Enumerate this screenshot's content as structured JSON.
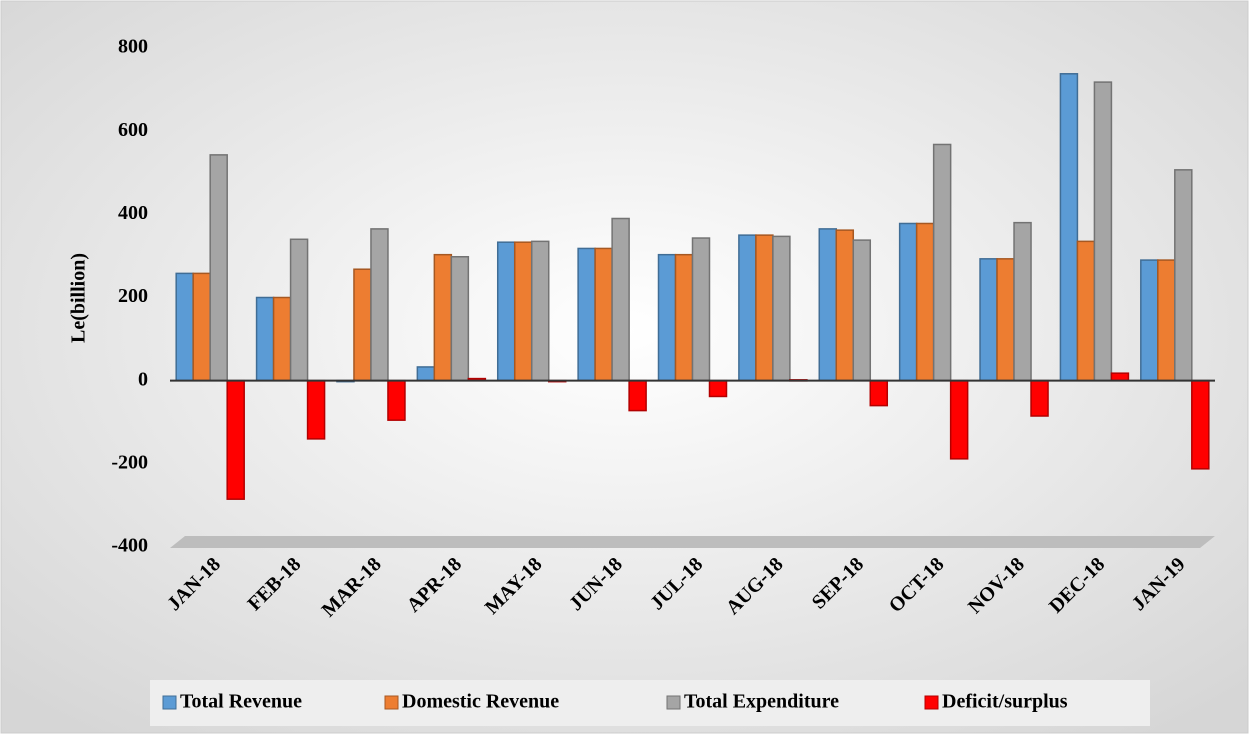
{
  "chart_data": {
    "type": "bar",
    "y_label": "Le(billion)",
    "categories": [
      "JAN-18",
      "FEB-18",
      "MAR-18",
      "APR-18",
      "MAY-18",
      "JUN-18",
      "JUL-18",
      "AUG-18",
      "SEP-18",
      "OCT-18",
      "NOV-18",
      "DEC-18",
      "JAN-19"
    ],
    "series": [
      {
        "name": "Total Revenue",
        "color": "#5b9bd5",
        "values": [
          258,
          200,
          0,
          33,
          333,
          318,
          303,
          350,
          365,
          378,
          293,
          738,
          290
        ]
      },
      {
        "name": "Domestic Revenue",
        "color": "#ed7d31",
        "values": [
          258,
          200,
          268,
          303,
          333,
          318,
          303,
          350,
          362,
          378,
          293,
          335,
          290
        ]
      },
      {
        "name": "Total Expenditure",
        "color": "#a5a5a5",
        "values": [
          543,
          340,
          365,
          298,
          335,
          390,
          343,
          347,
          338,
          568,
          380,
          718,
          507
        ]
      },
      {
        "name": "Deficit/surplus",
        "color": "#ff0000",
        "values": [
          -285,
          -140,
          -95,
          5,
          0,
          -72,
          -38,
          2,
          -60,
          -188,
          -85,
          18,
          -212
        ]
      }
    ],
    "ylim": [
      -400,
      800
    ],
    "yticks": [
      -400,
      -200,
      0,
      200,
      400,
      600,
      800
    ],
    "grid": false,
    "legend": "bottom"
  }
}
